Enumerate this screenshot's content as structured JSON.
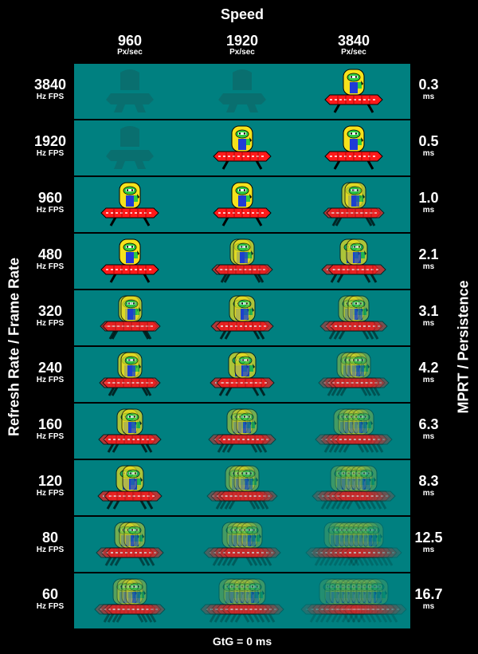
{
  "title": "Speed",
  "footer": "GtG = 0 ms",
  "y_axis_left": "Refresh Rate / Frame Rate",
  "y_axis_right": "MPRT / Persistence",
  "columns": [
    {
      "value": "960",
      "unit": "Px/sec"
    },
    {
      "value": "1920",
      "unit": "Px/sec"
    },
    {
      "value": "3840",
      "unit": "Px/sec"
    }
  ],
  "rows": [
    {
      "rate": "3840",
      "rate_unit": "Hz FPS",
      "mprt": "0.3",
      "mprt_unit": "ms"
    },
    {
      "rate": "1920",
      "rate_unit": "Hz FPS",
      "mprt": "0.5",
      "mprt_unit": "ms"
    },
    {
      "rate": "960",
      "rate_unit": "Hz FPS",
      "mprt": "1.0",
      "mprt_unit": "ms"
    },
    {
      "rate": "480",
      "rate_unit": "Hz FPS",
      "mprt": "2.1",
      "mprt_unit": "ms"
    },
    {
      "rate": "320",
      "rate_unit": "Hz FPS",
      "mprt": "3.1",
      "mprt_unit": "ms"
    },
    {
      "rate": "240",
      "rate_unit": "Hz FPS",
      "mprt": "4.2",
      "mprt_unit": "ms"
    },
    {
      "rate": "160",
      "rate_unit": "Hz FPS",
      "mprt": "6.3",
      "mprt_unit": "ms"
    },
    {
      "rate": "120",
      "rate_unit": "Hz FPS",
      "mprt": "8.3",
      "mprt_unit": "ms"
    },
    {
      "rate": "80",
      "rate_unit": "Hz FPS",
      "mprt": "12.5",
      "mprt_unit": "ms"
    },
    {
      "rate": "60",
      "rate_unit": "Hz FPS",
      "mprt": "16.7",
      "mprt_unit": "ms"
    }
  ],
  "icons": {
    "sprite": "ufo-alien-icon"
  },
  "colors": {
    "cell_bg": "#008080",
    "page_bg": "#000000",
    "saucer": "#ff1a1a",
    "dome": "#f5e21c",
    "alien": "#2ecc40",
    "body": "#1f3bd6"
  }
}
